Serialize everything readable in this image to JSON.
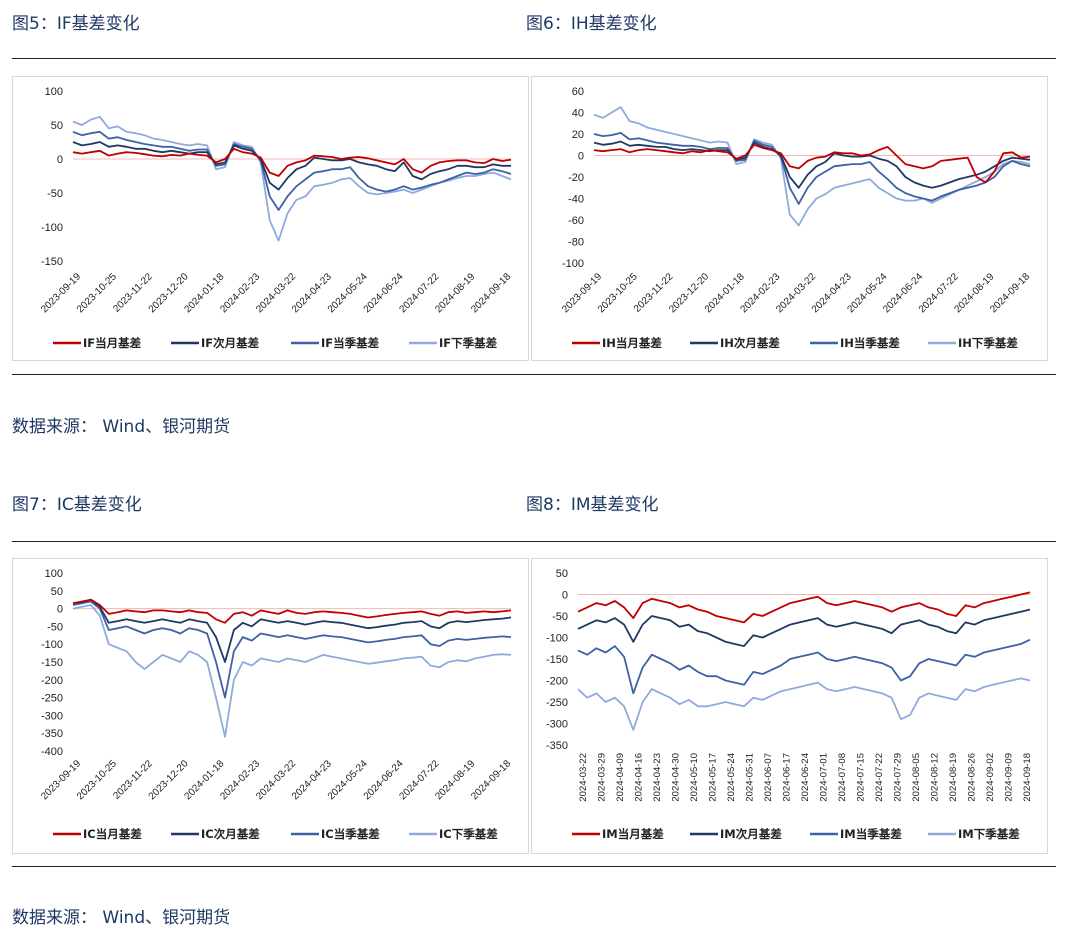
{
  "figures": [
    {
      "caption": "图5：IF基差变化",
      "source": "数据来源：  Wind、银河期货"
    },
    {
      "caption": "图6：IH基差变化"
    },
    {
      "caption": "图7：IC基差变化",
      "source": "数据来源：  Wind、银河期货"
    },
    {
      "caption": "图8：IM基差变化"
    }
  ],
  "colors": {
    "current": "#c00000",
    "next": "#203864",
    "quarter": "#3e62a6",
    "next_quarter": "#8faadc",
    "zero": "#f0b8b8"
  },
  "chart_data": [
    {
      "type": "line",
      "ylim": [
        -150,
        100
      ],
      "yticks": [
        100,
        50,
        0,
        -50,
        -100,
        -150
      ],
      "x_ticks": [
        "2023-09-19",
        "2023-10-25",
        "2023-11-22",
        "2023-12-20",
        "2024-01-18",
        "2024-02-23",
        "2024-03-22",
        "2024-04-23",
        "2024-05-24",
        "2024-06-24",
        "2024-07-22",
        "2024-08-19",
        "2024-09-18"
      ],
      "series": [
        {
          "name": "IF当月基差",
          "values": [
            10,
            8,
            10,
            12,
            5,
            8,
            10,
            9,
            7,
            5,
            4,
            6,
            5,
            8,
            6,
            5,
            -5,
            0,
            15,
            10,
            8,
            2,
            -20,
            -25,
            -10,
            -5,
            -2,
            5,
            4,
            3,
            0,
            2,
            3,
            1,
            -2,
            -5,
            -8,
            0,
            -15,
            -20,
            -10,
            -5,
            -3,
            -2,
            -2,
            -5,
            -6,
            0,
            -3,
            -1
          ]
        },
        {
          "name": "IF次月基差",
          "values": [
            25,
            20,
            22,
            25,
            18,
            20,
            18,
            15,
            15,
            12,
            10,
            12,
            10,
            8,
            10,
            10,
            -8,
            -5,
            20,
            15,
            12,
            0,
            -35,
            -45,
            -28,
            -15,
            -10,
            2,
            0,
            -2,
            -2,
            0,
            -5,
            -8,
            -10,
            -15,
            -18,
            -5,
            -25,
            -30,
            -22,
            -18,
            -15,
            -10,
            -10,
            -12,
            -12,
            -8,
            -10,
            -10
          ]
        },
        {
          "name": "IF当季基差",
          "values": [
            40,
            35,
            38,
            40,
            30,
            32,
            28,
            25,
            22,
            20,
            18,
            18,
            15,
            12,
            14,
            14,
            -10,
            -8,
            22,
            18,
            15,
            -2,
            -55,
            -75,
            -55,
            -40,
            -30,
            -20,
            -18,
            -15,
            -15,
            -12,
            -28,
            -40,
            -45,
            -48,
            -45,
            -40,
            -45,
            -42,
            -38,
            -35,
            -30,
            -25,
            -20,
            -22,
            -20,
            -15,
            -18,
            -22
          ]
        },
        {
          "name": "IF下季基差",
          "values": [
            55,
            50,
            58,
            62,
            45,
            48,
            40,
            38,
            35,
            30,
            28,
            25,
            22,
            20,
            22,
            20,
            -15,
            -12,
            25,
            20,
            18,
            -5,
            -90,
            -120,
            -80,
            -60,
            -55,
            -40,
            -38,
            -35,
            -30,
            -28,
            -40,
            -50,
            -52,
            -50,
            -48,
            -45,
            -50,
            -45,
            -40,
            -35,
            -32,
            -28,
            -25,
            -25,
            -22,
            -20,
            -25,
            -30
          ]
        }
      ]
    },
    {
      "type": "line",
      "ylim": [
        -100,
        60
      ],
      "yticks": [
        60,
        40,
        20,
        0,
        -20,
        -40,
        -60,
        -80,
        -100
      ],
      "x_ticks": [
        "2023-09-19",
        "2023-10-25",
        "2023-11-22",
        "2023-12-20",
        "2024-01-18",
        "2024-02-23",
        "2024-03-22",
        "2024-04-23",
        "2024-05-24",
        "2024-06-24",
        "2024-07-22",
        "2024-08-19",
        "2024-09-18"
      ],
      "series": [
        {
          "name": "IH当月基差",
          "values": [
            5,
            4,
            5,
            6,
            3,
            5,
            6,
            5,
            4,
            3,
            2,
            4,
            3,
            5,
            4,
            3,
            -3,
            0,
            10,
            7,
            5,
            2,
            -10,
            -12,
            -5,
            -2,
            -1,
            3,
            2,
            2,
            0,
            1,
            5,
            8,
            0,
            -8,
            -10,
            -12,
            -10,
            -5,
            -4,
            -3,
            -2,
            -20,
            -25,
            -15,
            2,
            3,
            -2,
            -1
          ]
        },
        {
          "name": "IH次月基差",
          "values": [
            12,
            10,
            11,
            13,
            9,
            10,
            9,
            8,
            8,
            6,
            5,
            6,
            5,
            4,
            5,
            5,
            -4,
            -2,
            12,
            8,
            6,
            0,
            -20,
            -30,
            -18,
            -10,
            -6,
            2,
            0,
            -1,
            -1,
            0,
            -3,
            -5,
            -10,
            -20,
            -25,
            -28,
            -30,
            -28,
            -25,
            -22,
            -20,
            -18,
            -15,
            -10,
            -5,
            -2,
            -3,
            -4
          ]
        },
        {
          "name": "IH当季基差",
          "values": [
            20,
            18,
            19,
            21,
            15,
            16,
            14,
            12,
            11,
            10,
            9,
            9,
            8,
            6,
            7,
            7,
            -5,
            -4,
            14,
            10,
            8,
            -1,
            -30,
            -45,
            -30,
            -20,
            -15,
            -10,
            -9,
            -8,
            -8,
            -6,
            -15,
            -22,
            -30,
            -35,
            -38,
            -40,
            -42,
            -38,
            -35,
            -32,
            -30,
            -28,
            -25,
            -20,
            -10,
            -5,
            -8,
            -10
          ]
        },
        {
          "name": "IH下季基差",
          "values": [
            38,
            35,
            40,
            45,
            32,
            30,
            26,
            24,
            22,
            20,
            18,
            16,
            14,
            12,
            13,
            12,
            -8,
            -6,
            15,
            12,
            10,
            -3,
            -55,
            -65,
            -50,
            -40,
            -36,
            -30,
            -28,
            -26,
            -24,
            -22,
            -30,
            -35,
            -40,
            -42,
            -42,
            -40,
            -44,
            -40,
            -36,
            -32,
            -28,
            -24,
            -20,
            -15,
            -8,
            -5,
            -6,
            -8
          ]
        }
      ]
    },
    {
      "type": "line",
      "ylim": [
        -400,
        100
      ],
      "yticks": [
        100,
        50,
        0,
        -50,
        -100,
        -150,
        -200,
        -250,
        -300,
        -350,
        -400
      ],
      "x_ticks": [
        "2023-09-19",
        "2023-10-25",
        "2023-11-22",
        "2023-12-20",
        "2024-01-18",
        "2024-02-23",
        "2024-03-22",
        "2024-04-23",
        "2024-05-24",
        "2024-06-24",
        "2024-07-22",
        "2024-08-19",
        "2024-09-18"
      ],
      "series": [
        {
          "name": "IC当月基差",
          "values": [
            15,
            20,
            25,
            10,
            -15,
            -10,
            -5,
            -8,
            -10,
            -5,
            -5,
            -8,
            -10,
            -5,
            -10,
            -12,
            -30,
            -40,
            -15,
            -10,
            -20,
            -5,
            -10,
            -15,
            -5,
            -12,
            -15,
            -10,
            -8,
            -10,
            -12,
            -15,
            -20,
            -25,
            -22,
            -18,
            -15,
            -12,
            -10,
            -8,
            -15,
            -20,
            -10,
            -8,
            -12,
            -10,
            -8,
            -10,
            -8,
            -5
          ]
        },
        {
          "name": "IC次月基差",
          "values": [
            15,
            18,
            25,
            5,
            -40,
            -35,
            -30,
            -35,
            -40,
            -35,
            -30,
            -35,
            -40,
            -30,
            -35,
            -40,
            -80,
            -150,
            -60,
            -40,
            -50,
            -30,
            -35,
            -40,
            -35,
            -40,
            -45,
            -40,
            -35,
            -38,
            -40,
            -45,
            -50,
            -55,
            -52,
            -48,
            -45,
            -40,
            -38,
            -35,
            -50,
            -55,
            -40,
            -35,
            -38,
            -35,
            -32,
            -30,
            -28,
            -25
          ]
        },
        {
          "name": "IC当季基差",
          "values": [
            10,
            15,
            20,
            0,
            -60,
            -55,
            -50,
            -60,
            -70,
            -60,
            -55,
            -60,
            -70,
            -55,
            -60,
            -70,
            -150,
            -250,
            -120,
            -80,
            -90,
            -70,
            -75,
            -80,
            -75,
            -80,
            -85,
            -80,
            -75,
            -78,
            -80,
            -85,
            -90,
            -95,
            -92,
            -88,
            -85,
            -80,
            -78,
            -75,
            -100,
            -105,
            -90,
            -85,
            -88,
            -85,
            -82,
            -80,
            -78,
            -80
          ]
        },
        {
          "name": "IC下季基差",
          "values": [
            0,
            5,
            10,
            -20,
            -100,
            -110,
            -120,
            -150,
            -170,
            -150,
            -130,
            -140,
            -150,
            -120,
            -130,
            -150,
            -250,
            -360,
            -200,
            -150,
            -160,
            -140,
            -145,
            -150,
            -140,
            -145,
            -150,
            -140,
            -130,
            -135,
            -140,
            -145,
            -150,
            -155,
            -152,
            -148,
            -145,
            -140,
            -138,
            -135,
            -160,
            -165,
            -150,
            -145,
            -148,
            -140,
            -135,
            -130,
            -128,
            -130
          ]
        }
      ]
    },
    {
      "type": "line",
      "ylim": [
        -350,
        50
      ],
      "yticks": [
        50,
        0,
        -50,
        -100,
        -150,
        -200,
        -250,
        -300,
        -350
      ],
      "x_ticks": [
        "2024-03-22",
        "2024-03-29",
        "2024-04-09",
        "2024-04-16",
        "2024-04-23",
        "2024-04-30",
        "2024-05-10",
        "2024-05-17",
        "2024-05-24",
        "2024-05-31",
        "2024-06-07",
        "2024-06-17",
        "2024-06-24",
        "2024-07-01",
        "2024-07-08",
        "2024-07-15",
        "2024-07-22",
        "2024-07-29",
        "2024-08-05",
        "2024-08-12",
        "2024-08-19",
        "2024-08-26",
        "2024-09-02",
        "2024-09-09",
        "2024-09-18"
      ],
      "series": [
        {
          "name": "IM当月基差",
          "values": [
            -40,
            -30,
            -20,
            -25,
            -15,
            -30,
            -55,
            -20,
            -10,
            -15,
            -20,
            -30,
            -25,
            -35,
            -40,
            -50,
            -55,
            -60,
            -65,
            -45,
            -50,
            -40,
            -30,
            -20,
            -15,
            -10,
            -5,
            -20,
            -25,
            -20,
            -15,
            -20,
            -25,
            -30,
            -40,
            -30,
            -25,
            -20,
            -30,
            -35,
            -45,
            -50,
            -25,
            -30,
            -20,
            -15,
            -10,
            -5,
            0,
            5
          ]
        },
        {
          "name": "IM次月基差",
          "values": [
            -80,
            -70,
            -60,
            -65,
            -55,
            -70,
            -110,
            -70,
            -50,
            -55,
            -60,
            -75,
            -70,
            -85,
            -90,
            -100,
            -110,
            -115,
            -120,
            -95,
            -100,
            -90,
            -80,
            -70,
            -65,
            -60,
            -55,
            -70,
            -75,
            -70,
            -65,
            -70,
            -75,
            -80,
            -90,
            -70,
            -65,
            -60,
            -70,
            -75,
            -85,
            -90,
            -65,
            -70,
            -60,
            -55,
            -50,
            -45,
            -40,
            -35
          ]
        },
        {
          "name": "IM当季基差",
          "values": [
            -130,
            -140,
            -125,
            -135,
            -120,
            -145,
            -230,
            -170,
            -140,
            -150,
            -160,
            -175,
            -165,
            -180,
            -190,
            -190,
            -200,
            -205,
            -210,
            -180,
            -185,
            -175,
            -165,
            -150,
            -145,
            -140,
            -135,
            -150,
            -155,
            -150,
            -145,
            -150,
            -155,
            -160,
            -170,
            -200,
            -190,
            -160,
            -150,
            -155,
            -160,
            -165,
            -140,
            -145,
            -135,
            -130,
            -125,
            -120,
            -115,
            -105
          ]
        },
        {
          "name": "IM下季基差",
          "values": [
            -220,
            -240,
            -230,
            -250,
            -240,
            -260,
            -315,
            -250,
            -220,
            -230,
            -240,
            -255,
            -245,
            -260,
            -260,
            -255,
            -250,
            -255,
            -260,
            -240,
            -245,
            -235,
            -225,
            -220,
            -215,
            -210,
            -205,
            -220,
            -225,
            -220,
            -215,
            -220,
            -225,
            -230,
            -240,
            -290,
            -280,
            -240,
            -230,
            -235,
            -240,
            -245,
            -220,
            -225,
            -215,
            -210,
            -205,
            -200,
            -195,
            -200
          ]
        }
      ]
    }
  ]
}
